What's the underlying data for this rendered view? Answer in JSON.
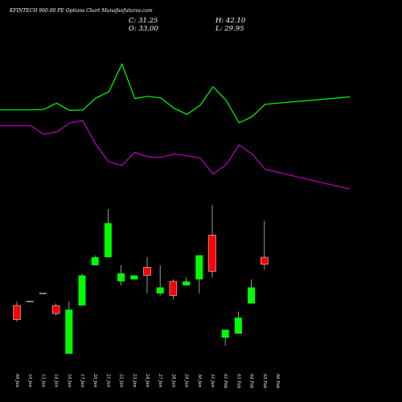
{
  "chart_data": {
    "type": "candlestick",
    "title": "KFINTECH 960.00 PE Options Chart Munafaofutures.com",
    "ohlc_readout": {
      "open": "O: 33.00",
      "high": "H: 42.10",
      "close": "C: 31.25",
      "low": "L: 29.95"
    },
    "background_color": "#000000",
    "up_color": "#00ff00",
    "down_color": "#ff0000",
    "indicator_colors": [
      "#00ff00",
      "#c000c0"
    ],
    "x_labels": [
      "09 Jan",
      "10 Jan",
      "13 Jan",
      "14 Jan",
      "16 Jan",
      "17 Jan",
      "20 Jan",
      "21 Jan",
      "22 Jan",
      "23 Jan",
      "24 Jan",
      "27 Jan",
      "28 Jan",
      "29 Jan",
      "30 Jan",
      "31 Jan",
      "01 Feb",
      "03 Feb",
      "04 Feb",
      "05 Feb",
      "06 Feb"
    ],
    "candles": [
      {
        "open": 21.0,
        "high": 22.0,
        "low": 17.0,
        "close": 17.5
      },
      {
        "open": 22.0,
        "high": 22.0,
        "low": 22.0,
        "close": 22.0
      },
      {
        "open": 24.0,
        "high": 24.0,
        "low": 24.0,
        "close": 24.0
      },
      {
        "open": 21.0,
        "high": 21.5,
        "low": 18.5,
        "close": 19.0
      },
      {
        "open": 9.0,
        "high": 22.0,
        "low": 9.0,
        "close": 20.0
      },
      {
        "open": 21.0,
        "high": 29.0,
        "low": 21.0,
        "close": 28.5
      },
      {
        "open": 31.0,
        "high": 33.5,
        "low": 31.0,
        "close": 33.0
      },
      {
        "open": 33.0,
        "high": 45.0,
        "low": 33.0,
        "close": 41.5
      },
      {
        "open": 27.0,
        "high": 31.0,
        "low": 26.0,
        "close": 29.0
      },
      {
        "open": 27.5,
        "high": 28.5,
        "low": 27.5,
        "close": 28.5
      },
      {
        "open": 30.5,
        "high": 33.0,
        "low": 24.0,
        "close": 28.5
      },
      {
        "open": 24.0,
        "high": 31.0,
        "low": 23.5,
        "close": 25.5
      },
      {
        "open": 27.0,
        "high": 27.5,
        "low": 22.5,
        "close": 23.5
      },
      {
        "open": 26.0,
        "high": 28.0,
        "low": 26.0,
        "close": 27.0
      },
      {
        "open": 27.5,
        "high": 33.5,
        "low": 24.0,
        "close": 33.5
      },
      {
        "open": 38.5,
        "high": 46.0,
        "low": 28.0,
        "close": 29.5
      },
      {
        "open": 13.0,
        "high": 15.0,
        "low": 11.0,
        "close": 15.0
      },
      {
        "open": 14.0,
        "high": 19.5,
        "low": 14.0,
        "close": 18.0
      },
      {
        "open": 21.5,
        "high": 27.5,
        "low": 21.5,
        "close": 25.5
      },
      {
        "open": 33.0,
        "high": 42.1,
        "low": 29.95,
        "close": 31.25
      }
    ],
    "candle_x_index": [
      0,
      1,
      2,
      3,
      4,
      5,
      6,
      7,
      8,
      9,
      10,
      11,
      12,
      13,
      14,
      15,
      16,
      17,
      18,
      19
    ],
    "indicator_1": [
      0.39,
      0.39,
      0.38,
      0.27,
      0.4,
      0.39,
      0.18,
      0.07,
      -0.42,
      0.19,
      0.15,
      0.18,
      0.36,
      0.47,
      0.31,
      -0.02,
      0.22,
      0.62,
      0.51,
      0.29,
      0.16
    ],
    "indicator_2": [
      0.67,
      0.67,
      0.82,
      0.78,
      0.62,
      0.58,
      1.0,
      1.31,
      1.37,
      1.14,
      1.22,
      1.23,
      1.17,
      1.2,
      1.24,
      1.52,
      1.36,
      1.01,
      1.17,
      1.44,
      1.79
    ],
    "indicator_ylim": [
      -0.7,
      2.0
    ],
    "price_ylim": [
      5,
      50
    ]
  }
}
